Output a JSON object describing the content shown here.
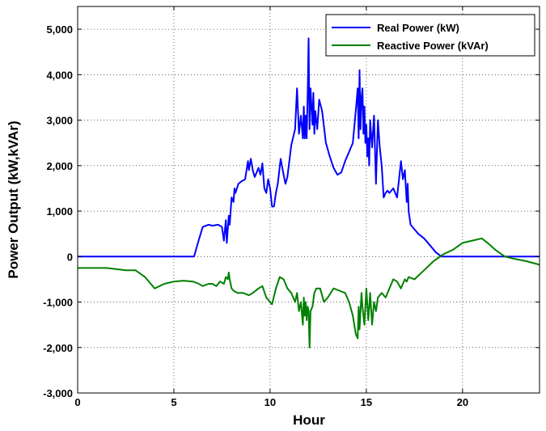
{
  "chart_data": {
    "type": "line",
    "xlabel": "Hour",
    "ylabel": "Power Output (kW,kVAr)",
    "xlim": [
      0,
      24
    ],
    "ylim": [
      -3000,
      5500
    ],
    "xticks": [
      0,
      5,
      10,
      15,
      20
    ],
    "xtick_labels": [
      "0",
      "5",
      "10",
      "15",
      "20"
    ],
    "yticks": [
      -3000,
      -2000,
      -1000,
      0,
      1000,
      2000,
      3000,
      4000,
      5000
    ],
    "ytick_labels": [
      "-3,000",
      "-2,000",
      "-1,000",
      "0",
      "1,000",
      "2,000",
      "3,000",
      "4,000",
      "5,000"
    ],
    "grid": true,
    "grid_style": "dotted",
    "legend_position": "top-right",
    "series": [
      {
        "name": "Real Power (kW)",
        "color": "#0000ff",
        "x": [
          0,
          6.05,
          6.25,
          6.5,
          6.8,
          7.0,
          7.3,
          7.5,
          7.6,
          7.7,
          7.75,
          7.8,
          7.85,
          7.9,
          8.0,
          8.1,
          8.15,
          8.2,
          8.35,
          8.5,
          8.7,
          8.85,
          8.9,
          9.0,
          9.1,
          9.2,
          9.4,
          9.5,
          9.6,
          9.7,
          9.8,
          9.9,
          10.0,
          10.1,
          10.2,
          10.3,
          10.4,
          10.55,
          10.7,
          10.8,
          10.9,
          11.0,
          11.1,
          11.3,
          11.4,
          11.5,
          11.6,
          11.7,
          11.75,
          11.8,
          11.85,
          11.9,
          11.95,
          12.0,
          12.05,
          12.1,
          12.15,
          12.2,
          12.25,
          12.3,
          12.35,
          12.45,
          12.55,
          12.7,
          12.9,
          13.1,
          13.3,
          13.5,
          13.7,
          13.9,
          14.1,
          14.3,
          14.45,
          14.55,
          14.6,
          14.65,
          14.7,
          14.75,
          14.8,
          14.85,
          14.9,
          14.95,
          15.0,
          15.05,
          15.1,
          15.15,
          15.2,
          15.3,
          15.4,
          15.5,
          15.6,
          15.7,
          15.8,
          15.9,
          16.0,
          16.1,
          16.2,
          16.4,
          16.6,
          16.8,
          16.9,
          17.0,
          17.1,
          17.15,
          17.2,
          17.3,
          17.5,
          17.7,
          18.0,
          18.3,
          18.6,
          18.9,
          19.1,
          24
        ],
        "values": [
          0,
          0,
          300,
          650,
          700,
          680,
          700,
          650,
          350,
          800,
          300,
          600,
          900,
          700,
          1300,
          1200,
          1500,
          1400,
          1600,
          1650,
          1700,
          2100,
          1900,
          2150,
          1900,
          1750,
          1950,
          1800,
          2050,
          1500,
          1400,
          1700,
          1500,
          1100,
          1100,
          1400,
          1600,
          2150,
          1800,
          1600,
          1750,
          2100,
          2450,
          2800,
          3700,
          2700,
          3100,
          2600,
          3300,
          2600,
          3100,
          2600,
          3500,
          4800,
          2800,
          3700,
          3300,
          2900,
          3600,
          2700,
          3200,
          2800,
          3450,
          3200,
          2500,
          2200,
          1950,
          1800,
          1850,
          2100,
          2300,
          2500,
          3200,
          3700,
          2600,
          4100,
          2800,
          3500,
          3700,
          2700,
          3300,
          2500,
          2900,
          2200,
          2600,
          2000,
          3000,
          2400,
          3100,
          1600,
          3000,
          2400,
          2000,
          1300,
          1400,
          1450,
          1400,
          1500,
          1300,
          2100,
          1700,
          1900,
          1200,
          1600,
          1000,
          700,
          600,
          500,
          400,
          250,
          100,
          0,
          0,
          0
        ]
      },
      {
        "name": "Reactive Power (kVAr)",
        "color": "#008000",
        "x": [
          0,
          1.5,
          2.5,
          3.0,
          3.5,
          3.8,
          4.0,
          4.5,
          5.0,
          5.5,
          6.0,
          6.3,
          6.5,
          6.8,
          7.0,
          7.2,
          7.4,
          7.6,
          7.7,
          7.8,
          7.85,
          7.9,
          8.0,
          8.1,
          8.3,
          8.6,
          8.9,
          9.1,
          9.4,
          9.6,
          9.8,
          10.0,
          10.1,
          10.3,
          10.5,
          10.7,
          10.9,
          11.1,
          11.3,
          11.4,
          11.5,
          11.6,
          11.7,
          11.75,
          11.8,
          11.85,
          11.9,
          11.95,
          12.0,
          12.05,
          12.1,
          12.2,
          12.3,
          12.4,
          12.6,
          12.8,
          13.0,
          13.3,
          13.6,
          13.9,
          14.1,
          14.3,
          14.45,
          14.55,
          14.6,
          14.65,
          14.7,
          14.75,
          14.8,
          14.9,
          15.0,
          15.1,
          15.2,
          15.3,
          15.4,
          15.5,
          15.6,
          15.8,
          16.0,
          16.2,
          16.4,
          16.6,
          16.8,
          16.9,
          17.0,
          17.1,
          17.2,
          17.5,
          18.0,
          18.5,
          19.0,
          19.5,
          20.0,
          20.5,
          21.0,
          21.3,
          21.7,
          22.2,
          22.7,
          23.3,
          24
        ],
        "values": [
          -250,
          -250,
          -300,
          -300,
          -450,
          -600,
          -700,
          -600,
          -550,
          -530,
          -550,
          -600,
          -650,
          -600,
          -600,
          -650,
          -550,
          -600,
          -450,
          -500,
          -350,
          -500,
          -700,
          -750,
          -800,
          -800,
          -850,
          -800,
          -700,
          -650,
          -900,
          -1000,
          -1050,
          -700,
          -450,
          -500,
          -700,
          -800,
          -1000,
          -800,
          -1200,
          -1000,
          -1500,
          -900,
          -1300,
          -1000,
          -1400,
          -1100,
          -1200,
          -2000,
          -1200,
          -1100,
          -800,
          -700,
          -700,
          -1000,
          -900,
          -700,
          -750,
          -800,
          -1000,
          -1300,
          -1700,
          -1800,
          -1100,
          -1600,
          -1200,
          -800,
          -1100,
          -1500,
          -700,
          -1400,
          -800,
          -1500,
          -1000,
          -1200,
          -900,
          -800,
          -900,
          -700,
          -500,
          -550,
          -700,
          -600,
          -500,
          -550,
          -450,
          -500,
          -300,
          -100,
          50,
          150,
          300,
          350,
          400,
          300,
          150,
          0,
          -50,
          -100,
          -180
        ]
      }
    ]
  }
}
